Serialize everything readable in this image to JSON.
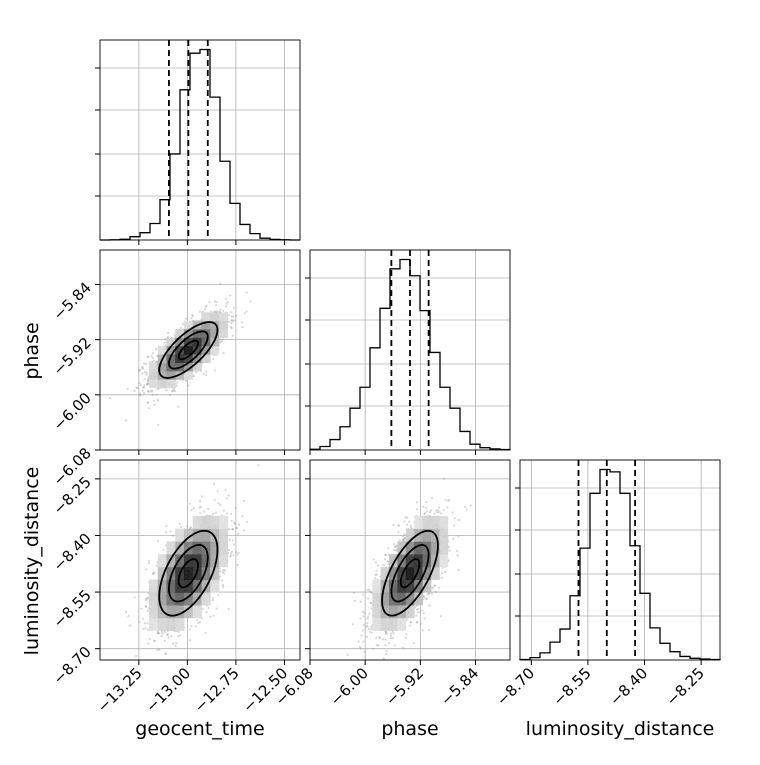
{
  "chart_data": {
    "type": "corner",
    "parameters": [
      "geocent_time",
      "phase",
      "luminosity_distance"
    ],
    "axis_labels": {
      "x": [
        "geocent_time",
        "phase",
        "luminosity_distance"
      ],
      "y": [
        "phase",
        "luminosity_distance"
      ]
    },
    "ranges": {
      "geocent_time": [
        -13.45,
        -12.42
      ],
      "phase": [
        -6.08,
        -5.79
      ],
      "luminosity_distance": [
        -8.73,
        -8.2
      ]
    },
    "ticks": {
      "geocent_time": {
        "values": [
          -13.25,
          -13.0,
          -12.75,
          -12.5
        ],
        "labels": [
          "−13.25",
          "−13.00",
          "−12.75",
          "−12.50"
        ]
      },
      "phase": {
        "values": [
          -6.08,
          -6.0,
          -5.92,
          -5.84
        ],
        "labels": [
          "−6.08",
          "−6.00",
          "−5.92",
          "−5.84"
        ]
      },
      "luminosity_distance": {
        "values": [
          -8.7,
          -8.55,
          -8.4,
          -8.25
        ],
        "labels": [
          "−8.70",
          "−8.55",
          "−8.40",
          "−8.25"
        ]
      }
    },
    "grid": true,
    "quantiles": {
      "geocent_time": [
        -13.095,
        -12.995,
        -12.895
      ],
      "phase": [
        -5.962,
        -5.935,
        -5.908
      ],
      "luminosity_distance": [
        -8.575,
        -8.5,
        -8.425
      ]
    },
    "histograms": {
      "geocent_time": {
        "edges_start": -13.45,
        "bin_width": 0.0515,
        "counts": [
          0,
          1,
          4,
          18,
          40,
          90,
          220,
          470,
          820,
          1020,
          1040,
          780,
          430,
          200,
          85,
          35,
          10,
          3,
          1,
          0
        ]
      },
      "phase": {
        "edges_start": -6.08,
        "bin_width": 0.0145,
        "counts": [
          3,
          15,
          45,
          100,
          180,
          270,
          440,
          610,
          780,
          820,
          750,
          600,
          420,
          270,
          180,
          80,
          25,
          10,
          5,
          2
        ]
      },
      "luminosity_distance": {
        "edges_start": -8.73,
        "bin_width": 0.0265,
        "counts": [
          2,
          10,
          30,
          75,
          130,
          270,
          470,
          700,
          800,
          790,
          700,
          480,
          280,
          135,
          70,
          35,
          15,
          7,
          4,
          2
        ]
      }
    },
    "joint": [
      {
        "x": "geocent_time",
        "y": "phase",
        "mean": [
          -12.995,
          -5.935
        ],
        "sd": [
          0.1,
          0.027
        ],
        "rho": 0.72
      },
      {
        "x": "geocent_time",
        "y": "luminosity_distance",
        "mean": [
          -12.995,
          -8.5
        ],
        "sd": [
          0.1,
          0.075
        ],
        "rho": 0.55
      },
      {
        "x": "phase",
        "y": "luminosity_distance",
        "mean": [
          -5.935,
          -8.5
        ],
        "sd": [
          0.027,
          0.075
        ],
        "rho": 0.65
      }
    ],
    "contour_levels": [
      0.5,
      1.0,
      1.5
    ]
  }
}
